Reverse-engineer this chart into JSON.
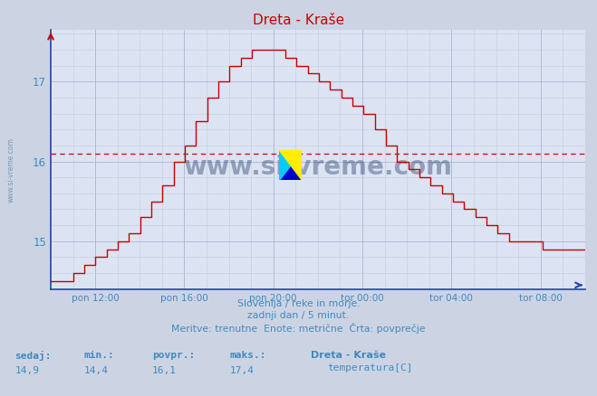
{
  "title": "Dreta - Kraše",
  "title_color": "#cc0000",
  "bg_color": "#ccd4e4",
  "plot_bg_color": "#dce4f4",
  "grid_color_major": "#aab4cc",
  "grid_color_minor": "#c4ccdc",
  "line_color": "#cc0000",
  "avg_line_color": "#cc0000",
  "avg_value": 16.1,
  "min_value": 14.4,
  "max_value": 17.4,
  "current_value": 14.9,
  "ylim_min": 14.45,
  "ylim_max": 17.65,
  "yticks": [
    15,
    16,
    17
  ],
  "axis_color": "#2244aa",
  "tick_label_color": "#4488bb",
  "tick_labels": [
    "pon 12:00",
    "pon 16:00",
    "pon 20:00",
    "tor 00:00",
    "tor 04:00",
    "tor 08:00"
  ],
  "footer_line1": "Slovenija / reke in morje.",
  "footer_line2": "zadnji dan / 5 minut.",
  "footer_line3": "Meritve: trenutne  Enote: metrične  Črta: povprečje",
  "legend_station": "Dreta - Kraše",
  "legend_label": "temperatura[C]",
  "stats_labels": [
    "sedaj:",
    "min.:",
    "povpr.:",
    "maks.:"
  ],
  "stats_values": [
    "14,9",
    "14,4",
    "16,1",
    "17,4"
  ],
  "watermark": "www.si-vreme.com",
  "watermark_color": "#1a3060",
  "n_points": 288,
  "left_label": "www.si-vreme.com",
  "tick_positions_h": [
    2,
    6,
    10,
    14,
    18,
    22
  ]
}
